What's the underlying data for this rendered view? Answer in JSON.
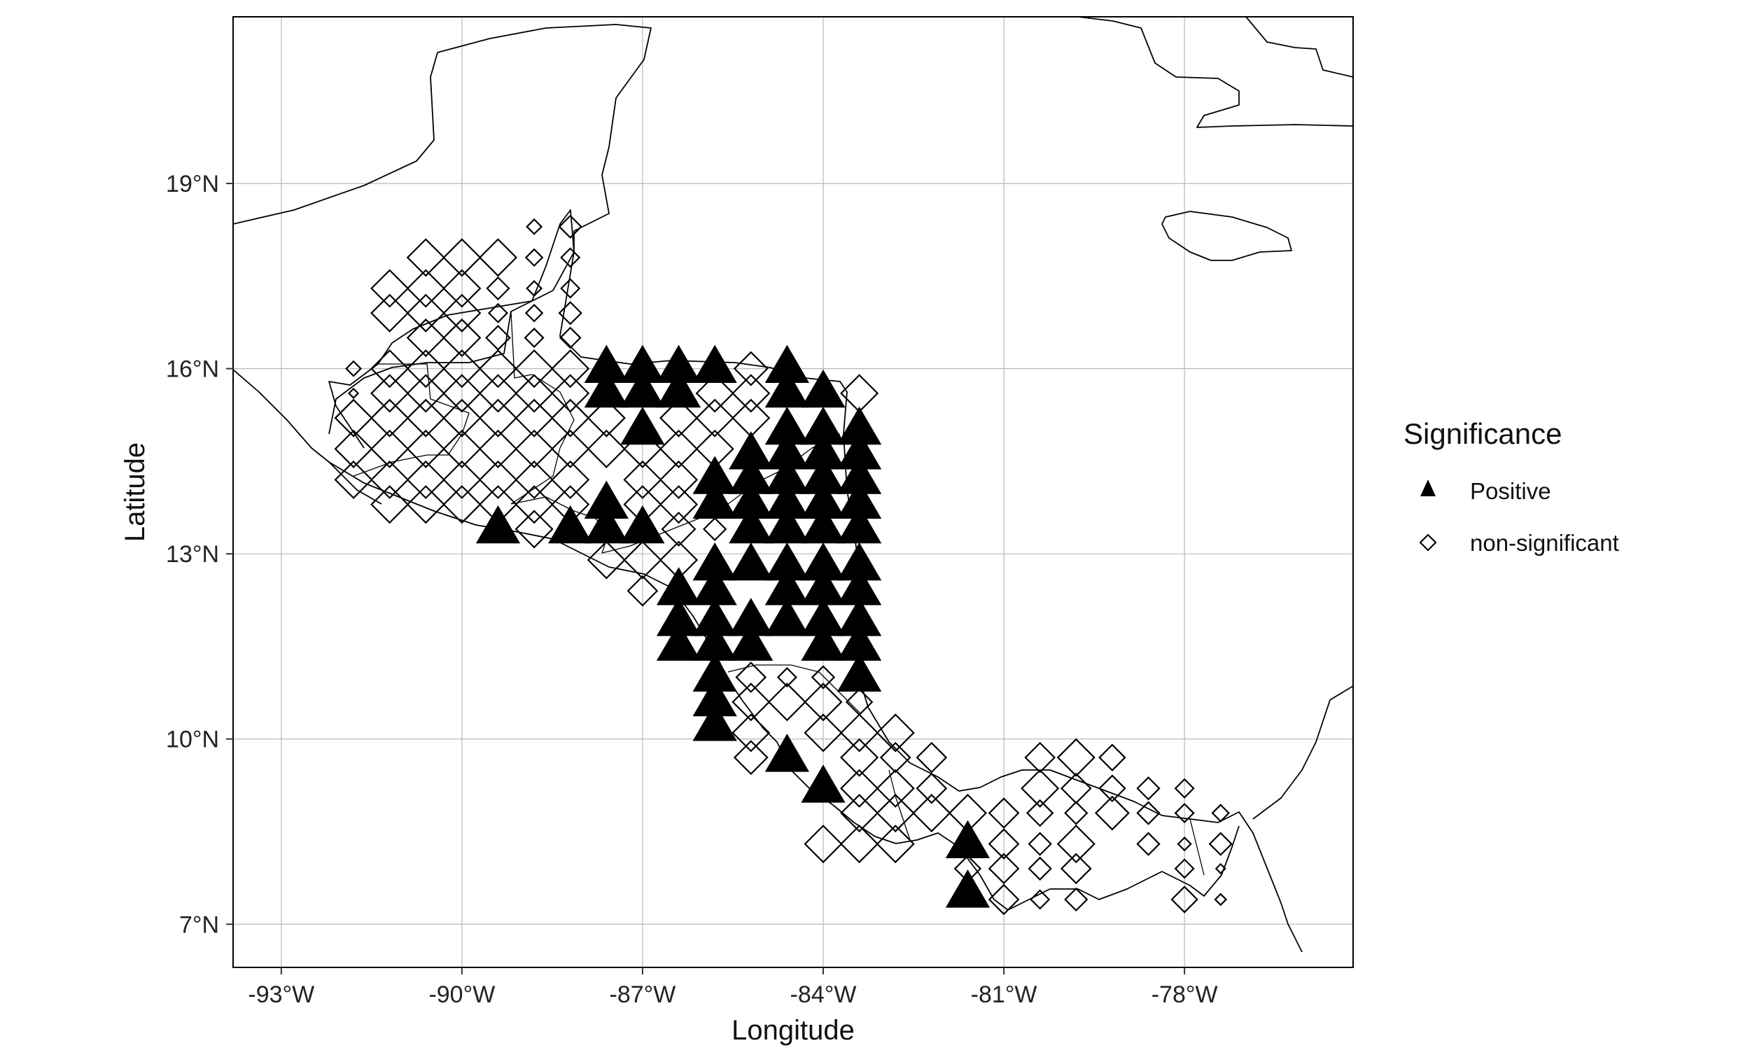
{
  "chart_data": {
    "type": "scatter",
    "title": "",
    "xlabel": "Longitude",
    "ylabel": "Latitude",
    "xlim": [
      -93.8,
      -75.2
    ],
    "ylim": [
      6.3,
      21.7
    ],
    "x_ticks": [
      {
        "value": -93,
        "label": "-93°W"
      },
      {
        "value": -90,
        "label": "-90°W"
      },
      {
        "value": -87,
        "label": "-87°W"
      },
      {
        "value": -84,
        "label": "-84°W"
      },
      {
        "value": -81,
        "label": "-81°W"
      },
      {
        "value": -78,
        "label": "-78°W"
      }
    ],
    "y_ticks": [
      {
        "value": 7,
        "label": "7°N"
      },
      {
        "value": 10,
        "label": "10°N"
      },
      {
        "value": 13,
        "label": "13°N"
      },
      {
        "value": 16,
        "label": "16°N"
      },
      {
        "value": 19,
        "label": "19°N"
      }
    ],
    "grid": true,
    "legend": {
      "title": "Significance",
      "placement": "right",
      "entries": [
        {
          "label": "Positive",
          "shape": "filled-triangle"
        },
        {
          "label": "non-significant",
          "shape": "open-diamond"
        }
      ]
    },
    "series": [
      {
        "name": "Positive",
        "marker": "triangle",
        "color": "#000000",
        "points": [
          [
            -87.6,
            16.0
          ],
          [
            -87.0,
            16.0
          ],
          [
            -86.4,
            16.0
          ],
          [
            -85.8,
            16.0
          ],
          [
            -84.6,
            16.0
          ],
          [
            -87.6,
            15.6
          ],
          [
            -87.0,
            15.6
          ],
          [
            -86.4,
            15.6
          ],
          [
            -84.6,
            15.6
          ],
          [
            -84.0,
            15.6
          ],
          [
            -87.0,
            15.0
          ],
          [
            -84.6,
            15.0
          ],
          [
            -84.0,
            15.0
          ],
          [
            -83.4,
            15.0
          ],
          [
            -85.2,
            14.6
          ],
          [
            -84.6,
            14.6
          ],
          [
            -84.0,
            14.6
          ],
          [
            -83.4,
            14.6
          ],
          [
            -85.8,
            14.2
          ],
          [
            -85.2,
            14.2
          ],
          [
            -84.6,
            14.2
          ],
          [
            -84.0,
            14.2
          ],
          [
            -83.4,
            14.2
          ],
          [
            -87.6,
            13.8
          ],
          [
            -85.8,
            13.8
          ],
          [
            -85.2,
            13.8
          ],
          [
            -84.6,
            13.8
          ],
          [
            -84.0,
            13.8
          ],
          [
            -83.4,
            13.8
          ],
          [
            -89.4,
            13.4
          ],
          [
            -88.2,
            13.4
          ],
          [
            -87.6,
            13.4
          ],
          [
            -87.0,
            13.4
          ],
          [
            -85.2,
            13.4
          ],
          [
            -84.6,
            13.4
          ],
          [
            -84.0,
            13.4
          ],
          [
            -83.4,
            13.4
          ],
          [
            -85.8,
            12.8
          ],
          [
            -85.2,
            12.8
          ],
          [
            -84.6,
            12.8
          ],
          [
            -84.0,
            12.8
          ],
          [
            -83.4,
            12.8
          ],
          [
            -86.4,
            12.4
          ],
          [
            -85.8,
            12.4
          ],
          [
            -84.6,
            12.4
          ],
          [
            -84.0,
            12.4
          ],
          [
            -83.4,
            12.4
          ],
          [
            -86.4,
            11.9
          ],
          [
            -85.8,
            11.9
          ],
          [
            -85.2,
            11.9
          ],
          [
            -84.6,
            11.9
          ],
          [
            -84.0,
            11.9
          ],
          [
            -83.4,
            11.9
          ],
          [
            -86.4,
            11.5
          ],
          [
            -85.8,
            11.5
          ],
          [
            -85.2,
            11.5
          ],
          [
            -84.0,
            11.5
          ],
          [
            -83.4,
            11.5
          ],
          [
            -85.8,
            11.0
          ],
          [
            -83.4,
            11.0
          ],
          [
            -85.8,
            10.6
          ],
          [
            -85.8,
            10.2
          ],
          [
            -84.6,
            9.7
          ],
          [
            -84.0,
            9.2
          ],
          [
            -81.6,
            8.3
          ],
          [
            -81.6,
            7.5
          ]
        ]
      },
      {
        "name": "non-significant",
        "marker": "diamond",
        "color": "#000000",
        "points": [
          [
            -90.6,
            17.8,
            1.0
          ],
          [
            -90.0,
            17.8,
            1.0
          ],
          [
            -89.4,
            17.8,
            1.0
          ],
          [
            -88.8,
            18.3,
            0.4
          ],
          [
            -88.2,
            18.3,
            0.6
          ],
          [
            -88.8,
            17.8,
            0.45
          ],
          [
            -88.2,
            17.8,
            0.5
          ],
          [
            -91.2,
            17.3,
            1.0
          ],
          [
            -90.6,
            17.3,
            1.0
          ],
          [
            -90.0,
            17.3,
            1.0
          ],
          [
            -89.4,
            17.3,
            0.6
          ],
          [
            -88.8,
            17.3,
            0.4
          ],
          [
            -88.2,
            17.3,
            0.5
          ],
          [
            -91.2,
            16.9,
            1.0
          ],
          [
            -90.6,
            16.9,
            1.0
          ],
          [
            -90.0,
            16.9,
            1.0
          ],
          [
            -89.4,
            16.9,
            0.5
          ],
          [
            -88.8,
            16.9,
            0.45
          ],
          [
            -88.2,
            16.9,
            0.6
          ],
          [
            -90.6,
            16.5,
            1.0
          ],
          [
            -90.0,
            16.5,
            1.0
          ],
          [
            -89.4,
            16.5,
            0.65
          ],
          [
            -88.8,
            16.5,
            0.5
          ],
          [
            -88.2,
            16.5,
            0.55
          ],
          [
            -91.8,
            16.0,
            0.4
          ],
          [
            -91.2,
            16.0,
            1.0
          ],
          [
            -90.6,
            16.0,
            1.0
          ],
          [
            -90.0,
            16.0,
            1.0
          ],
          [
            -89.4,
            16.0,
            1.0
          ],
          [
            -88.8,
            16.0,
            1.0
          ],
          [
            -88.2,
            16.0,
            1.0
          ],
          [
            -85.2,
            16.0,
            0.9
          ],
          [
            -91.8,
            15.6,
            0.25
          ],
          [
            -91.2,
            15.6,
            1.0
          ],
          [
            -90.6,
            15.6,
            1.0
          ],
          [
            -90.0,
            15.6,
            1.0
          ],
          [
            -89.4,
            15.6,
            1.0
          ],
          [
            -88.8,
            15.6,
            1.0
          ],
          [
            -88.2,
            15.6,
            1.0
          ],
          [
            -85.8,
            15.6,
            1.0
          ],
          [
            -85.2,
            15.6,
            1.0
          ],
          [
            -83.4,
            15.6,
            1.0
          ],
          [
            -91.8,
            15.2,
            1.0
          ],
          [
            -91.2,
            15.2,
            1.0
          ],
          [
            -90.6,
            15.2,
            1.0
          ],
          [
            -90.0,
            15.2,
            1.0
          ],
          [
            -89.4,
            15.2,
            1.0
          ],
          [
            -88.8,
            15.2,
            1.0
          ],
          [
            -88.2,
            15.2,
            1.0
          ],
          [
            -87.6,
            15.2,
            1.0
          ],
          [
            -86.4,
            15.2,
            1.0
          ],
          [
            -85.8,
            15.2,
            1.0
          ],
          [
            -85.2,
            15.2,
            1.0
          ],
          [
            -91.8,
            14.7,
            1.0
          ],
          [
            -91.2,
            14.7,
            1.0
          ],
          [
            -90.6,
            14.7,
            1.0
          ],
          [
            -90.0,
            14.7,
            1.0
          ],
          [
            -89.4,
            14.7,
            1.0
          ],
          [
            -88.8,
            14.7,
            1.0
          ],
          [
            -88.2,
            14.7,
            1.0
          ],
          [
            -87.6,
            14.7,
            1.0
          ],
          [
            -87.0,
            14.7,
            1.0
          ],
          [
            -86.4,
            14.7,
            1.0
          ],
          [
            -85.8,
            14.7,
            1.0
          ],
          [
            -91.8,
            14.2,
            1.0
          ],
          [
            -91.2,
            14.2,
            1.0
          ],
          [
            -90.6,
            14.2,
            1.0
          ],
          [
            -90.0,
            14.2,
            1.0
          ],
          [
            -89.4,
            14.2,
            1.0
          ],
          [
            -88.8,
            14.2,
            1.0
          ],
          [
            -88.2,
            14.2,
            1.0
          ],
          [
            -87.0,
            14.2,
            1.0
          ],
          [
            -86.4,
            14.2,
            1.0
          ],
          [
            -91.2,
            13.8,
            1.0
          ],
          [
            -90.6,
            13.8,
            1.0
          ],
          [
            -90.0,
            13.8,
            1.0
          ],
          [
            -89.4,
            13.8,
            1.0
          ],
          [
            -88.8,
            13.8,
            1.0
          ],
          [
            -88.2,
            13.8,
            1.0
          ],
          [
            -87.0,
            13.8,
            1.0
          ],
          [
            -86.4,
            13.8,
            1.0
          ],
          [
            -88.8,
            13.4,
            1.0
          ],
          [
            -86.4,
            13.4,
            0.9
          ],
          [
            -85.8,
            13.4,
            0.6
          ],
          [
            -87.6,
            12.9,
            1.0
          ],
          [
            -87.0,
            12.9,
            1.0
          ],
          [
            -86.4,
            12.9,
            1.0
          ],
          [
            -87.0,
            12.4,
            0.8
          ],
          [
            -85.2,
            11.0,
            0.8
          ],
          [
            -84.6,
            11.0,
            0.5
          ],
          [
            -84.0,
            11.0,
            0.6
          ],
          [
            -85.2,
            10.6,
            1.0
          ],
          [
            -84.6,
            10.6,
            1.0
          ],
          [
            -84.0,
            10.6,
            1.0
          ],
          [
            -83.4,
            10.6,
            0.7
          ],
          [
            -85.2,
            10.1,
            1.0
          ],
          [
            -84.0,
            10.1,
            1.0
          ],
          [
            -83.4,
            10.1,
            1.0
          ],
          [
            -82.8,
            10.1,
            1.0
          ],
          [
            -85.2,
            9.7,
            0.9
          ],
          [
            -83.4,
            9.7,
            1.0
          ],
          [
            -82.8,
            9.7,
            0.8
          ],
          [
            -82.2,
            9.7,
            0.8
          ],
          [
            -83.4,
            9.2,
            1.0
          ],
          [
            -82.8,
            9.2,
            1.0
          ],
          [
            -82.2,
            9.2,
            0.8
          ],
          [
            -80.4,
            9.2,
            1.0
          ],
          [
            -79.8,
            9.2,
            0.8
          ],
          [
            -79.2,
            9.2,
            0.7
          ],
          [
            -78.6,
            9.2,
            0.6
          ],
          [
            -78.0,
            9.2,
            0.5
          ],
          [
            -80.4,
            9.7,
            0.8
          ],
          [
            -79.8,
            9.7,
            1.0
          ],
          [
            -79.2,
            9.7,
            0.7
          ],
          [
            -83.4,
            8.8,
            1.0
          ],
          [
            -82.8,
            8.8,
            1.0
          ],
          [
            -82.2,
            8.8,
            1.0
          ],
          [
            -81.6,
            8.8,
            1.0
          ],
          [
            -81.0,
            8.8,
            0.8
          ],
          [
            -80.4,
            8.8,
            0.7
          ],
          [
            -79.8,
            8.8,
            0.6
          ],
          [
            -79.2,
            8.8,
            0.9
          ],
          [
            -78.6,
            8.8,
            0.6
          ],
          [
            -78.0,
            8.8,
            0.5
          ],
          [
            -77.4,
            8.8,
            0.45
          ],
          [
            -84.0,
            8.3,
            1.0
          ],
          [
            -83.4,
            8.3,
            1.0
          ],
          [
            -82.8,
            8.3,
            1.0
          ],
          [
            -81.0,
            8.3,
            0.8
          ],
          [
            -80.4,
            8.3,
            0.6
          ],
          [
            -79.8,
            8.3,
            1.0
          ],
          [
            -78.6,
            8.3,
            0.6
          ],
          [
            -78.0,
            8.3,
            0.35
          ],
          [
            -77.4,
            8.3,
            0.6
          ],
          [
            -81.6,
            7.9,
            0.7
          ],
          [
            -81.0,
            7.9,
            0.8
          ],
          [
            -80.4,
            7.9,
            0.6
          ],
          [
            -79.8,
            7.9,
            0.8
          ],
          [
            -78.0,
            7.9,
            0.5
          ],
          [
            -77.4,
            7.9,
            0.25
          ],
          [
            -81.0,
            7.4,
            0.8
          ],
          [
            -80.4,
            7.4,
            0.5
          ],
          [
            -79.8,
            7.4,
            0.6
          ],
          [
            -78.0,
            7.4,
            0.7
          ],
          [
            -77.4,
            7.4,
            0.3
          ]
        ]
      }
    ]
  }
}
